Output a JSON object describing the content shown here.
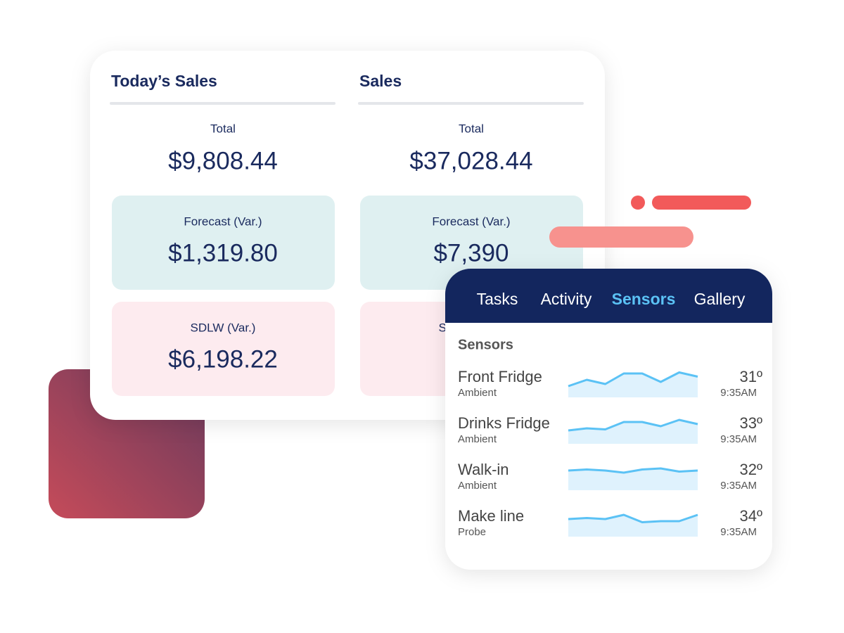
{
  "sales_panel": {
    "columns": [
      {
        "title": "Today’s Sales",
        "total_label": "Total",
        "total": "$9,808.44",
        "cards": [
          {
            "label": "Forecast (Var.)",
            "value": "$1,319.80"
          },
          {
            "label": "SDLW (Var.)",
            "value": "$6,198.22"
          }
        ]
      },
      {
        "title": "Sales",
        "total_label": "Total",
        "total": "$37,028.44",
        "cards": [
          {
            "label": "Forecast (Var.)",
            "value": "$7,390"
          },
          {
            "label": "SDLW (Var.)"
          }
        ]
      }
    ]
  },
  "sensor_panel": {
    "tabs": [
      "Tasks",
      "Activity",
      "Sensors",
      "Gallery"
    ],
    "active_tab": 2,
    "heading": "Sensors",
    "rows": [
      {
        "name": "Front Fridge",
        "type": "Ambient",
        "temperature": "31º",
        "time": "9:35AM",
        "sparkline": [
          2,
          5,
          3,
          8,
          8,
          4,
          8.5,
          6.5
        ]
      },
      {
        "name": "Drinks Fridge",
        "type": "Ambient",
        "temperature": "33º",
        "time": "9:35AM",
        "sparkline": [
          3,
          4,
          3.5,
          7,
          7,
          5,
          8,
          6
        ]
      },
      {
        "name": "Walk-in",
        "type": "Ambient",
        "temperature": "32º",
        "time": "9:35AM",
        "sparkline": [
          6,
          6.5,
          6,
          5,
          6.5,
          7,
          5.5,
          6
        ]
      },
      {
        "name": "Make line",
        "type": "Probe",
        "temperature": "34º",
        "time": "9:35AM",
        "sparkline": [
          5,
          5.5,
          5,
          7,
          3.5,
          4,
          4,
          7
        ]
      }
    ]
  }
}
